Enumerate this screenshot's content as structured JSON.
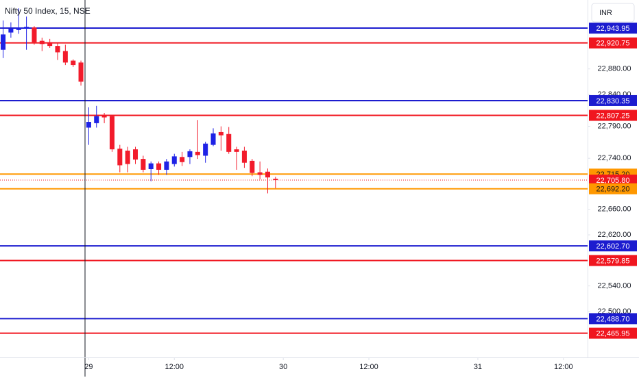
{
  "chart_data": {
    "type": "candlestick",
    "title": "Nifty 50 Index, 15, NSE",
    "currency": "INR",
    "up_color": "#1e22e6",
    "down_color": "#f21b2b",
    "xlim": [
      -11.4,
      64.1
    ],
    "ylim": [
      22428,
      22988
    ],
    "xticks": [
      {
        "value": 0,
        "label": "29"
      },
      {
        "value": 11,
        "label": "12:00"
      },
      {
        "value": 25,
        "label": "30"
      },
      {
        "value": 36,
        "label": "12:00"
      },
      {
        "value": 50,
        "label": "31"
      },
      {
        "value": 61,
        "label": "12:00"
      }
    ],
    "yticks": [
      {
        "value": 22880,
        "label": "22,880.00"
      },
      {
        "value": 22840,
        "label": "22,840.00"
      },
      {
        "value": 22790,
        "label": "22,790.00"
      },
      {
        "value": 22740,
        "label": "22,740.00"
      },
      {
        "value": 22660,
        "label": "22,660.00"
      },
      {
        "value": 22620,
        "label": "22,620.00"
      },
      {
        "value": 22540,
        "label": "22,540.00"
      },
      {
        "value": 22500,
        "label": "22,500.00"
      }
    ],
    "x": [
      -11,
      -10,
      -9,
      -8,
      -7,
      -6,
      -5,
      -4,
      -3,
      -2,
      -1,
      0,
      1,
      2,
      3,
      4,
      5,
      6,
      7,
      8,
      9,
      10,
      11,
      12,
      13,
      14,
      15,
      16,
      17,
      18,
      19,
      20,
      21,
      22,
      23,
      24
    ],
    "open": [
      22910,
      22937,
      22941,
      22943,
      22945,
      22924,
      22922,
      22916,
      22908,
      22893,
      22890,
      22788,
      22795,
      22807,
      22806,
      22755,
      22752,
      22754,
      22739,
      22723,
      22732,
      22722,
      22731,
      22742,
      22742,
      22750,
      22744,
      22761,
      22781,
      22778,
      22754,
      22752,
      22736,
      22718,
      22719,
      22708
    ],
    "high": [
      22956,
      22953,
      22975,
      22962,
      22947,
      22929,
      22927,
      22920,
      22918,
      22895,
      22893,
      22820,
      22822,
      22811,
      22808,
      22761,
      22758,
      22758,
      22744,
      22735,
      22735,
      22739,
      22747,
      22750,
      22754,
      22800,
      22766,
      22787,
      22790,
      22789,
      22758,
      22758,
      22739,
      22735,
      22724,
      22711
    ],
    "low": [
      22897,
      22929,
      22935,
      22910,
      22918,
      22908,
      22913,
      22894,
      22886,
      22883,
      22854,
      22761,
      22788,
      22795,
      22750,
      22718,
      22718,
      22731,
      22718,
      22704,
      22714,
      22714,
      22727,
      22728,
      22731,
      22739,
      22733,
      22759,
      22752,
      22747,
      22722,
      22725,
      22712,
      22707,
      22685,
      22693
    ],
    "close": [
      22934,
      22943,
      22945,
      22946,
      22922,
      22919,
      22916,
      22906,
      22890,
      22886,
      22860,
      22797,
      22806,
      22804,
      22754,
      22729,
      22731,
      22738,
      22722,
      22732,
      22722,
      22735,
      22743,
      22734,
      22751,
      22745,
      22763,
      22779,
      22776,
      22750,
      22750,
      22733,
      22717,
      22714,
      22710,
      22706
    ],
    "levels": [
      {
        "value": 22943.95,
        "label": "22,943.95",
        "color": "#1c1ccf",
        "text_color": "#ffffff",
        "style": "solid"
      },
      {
        "value": 22920.75,
        "label": "22,920.75",
        "color": "#f0161f",
        "text_color": "#ffffff",
        "style": "solid"
      },
      {
        "value": 22830.35,
        "label": "22,830.35",
        "color": "#1c1ccf",
        "text_color": "#ffffff",
        "style": "solid"
      },
      {
        "value": 22807.25,
        "label": "22,807.25",
        "color": "#f0161f",
        "text_color": "#ffffff",
        "style": "solid"
      },
      {
        "value": 22715.2,
        "label": "22,715.20",
        "color": "#ff9800",
        "text_color": "#131722",
        "style": "solid"
      },
      {
        "value": 22705.8,
        "label": "22,705.80",
        "color": "#f0161f",
        "text_color": "#ffffff",
        "style": "dotted"
      },
      {
        "value": 22692.2,
        "label": "22,692.20",
        "color": "#ff9800",
        "text_color": "#131722",
        "style": "solid"
      },
      {
        "value": 22602.7,
        "label": "22,602.70",
        "color": "#1c1ccf",
        "text_color": "#ffffff",
        "style": "solid"
      },
      {
        "value": 22579.85,
        "label": "22,579.85",
        "color": "#f0161f",
        "text_color": "#ffffff",
        "style": "solid"
      },
      {
        "value": 22488.7,
        "label": "22,488.70",
        "color": "#1c1ccf",
        "text_color": "#ffffff",
        "style": "solid"
      },
      {
        "value": 22465.95,
        "label": "22,465.95",
        "color": "#f0161f",
        "text_color": "#ffffff",
        "style": "solid"
      }
    ]
  }
}
